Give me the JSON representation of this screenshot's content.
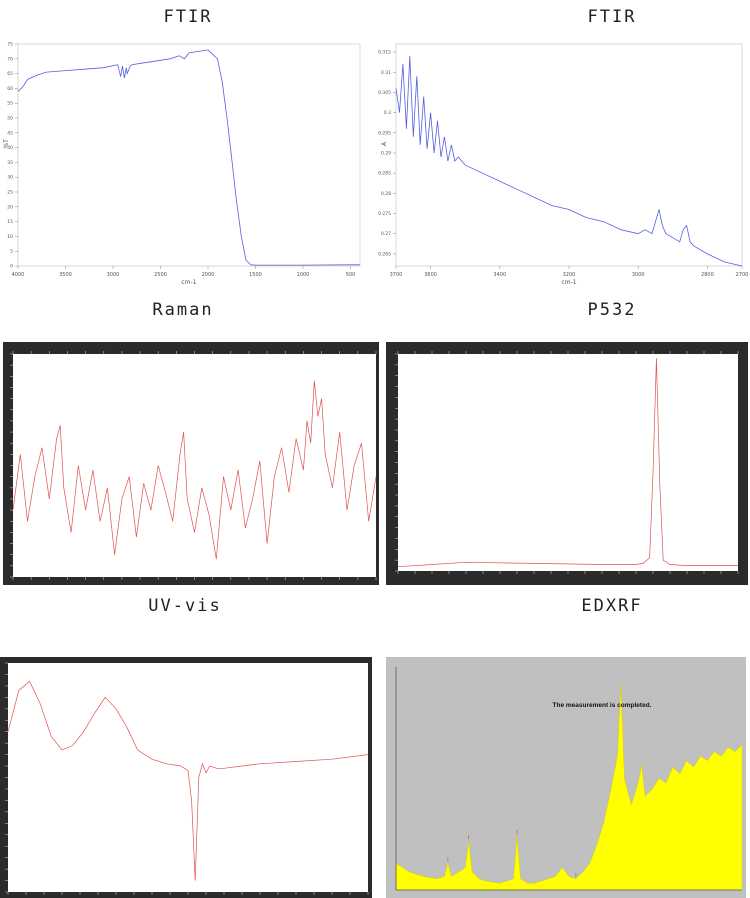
{
  "titles": {
    "ftir1": "FTIR",
    "ftir2": "FTIR",
    "raman": "Raman",
    "p532": "P532",
    "uvvis": "UV-vis",
    "edxrf": "EDXRF"
  },
  "chart_data": [
    {
      "id": "ftir1",
      "type": "line",
      "title": "FTIR",
      "xlabel": "cm-1",
      "ylabel": "%T",
      "xlim": [
        4000,
        400
      ],
      "ylim": [
        0,
        75
      ],
      "xticks": [
        4000,
        3500,
        3000,
        2500,
        2000,
        1500,
        1000,
        500
      ],
      "yticks": [
        0,
        5,
        10,
        15,
        20,
        25,
        30,
        35,
        40,
        45,
        50,
        55,
        60,
        65,
        70,
        75
      ],
      "color": "#5560e0",
      "series": [
        {
          "x": [
            4000,
            3950,
            3900,
            3800,
            3700,
            3500,
            3300,
            3100,
            2950,
            2920,
            2900,
            2880,
            2860,
            2850,
            2820,
            2800,
            2700,
            2600,
            2400,
            2300,
            2250,
            2200,
            2100,
            2000,
            1950,
            1900,
            1850,
            1800,
            1750,
            1700,
            1650,
            1600,
            1550,
            1500,
            1450,
            1400,
            1000,
            500,
            400
          ],
          "y": [
            59,
            60.5,
            63,
            64.5,
            65.5,
            66,
            66.5,
            67,
            68,
            64,
            67.5,
            63.5,
            67,
            65,
            67.5,
            68,
            68.5,
            69,
            70,
            71,
            70,
            72,
            72.5,
            73,
            71.5,
            70,
            62,
            50,
            36,
            22,
            10,
            2,
            0.4,
            0.3,
            0.3,
            0.3,
            0.3,
            0.4,
            0.4
          ]
        }
      ]
    },
    {
      "id": "ftir2",
      "type": "line",
      "title": "FTIR",
      "xlabel": "cm-1",
      "ylabel": "A",
      "xlim": [
        3700,
        2700
      ],
      "ylim": [
        0.262,
        0.317
      ],
      "xticks": [
        3700,
        3600,
        3400,
        3200,
        3000,
        2800,
        2700
      ],
      "yticks": [
        0.265,
        0.27,
        0.275,
        0.28,
        0.285,
        0.29,
        0.295,
        0.3,
        0.305,
        0.31,
        0.315
      ],
      "color": "#5560e0",
      "series": [
        {
          "x": [
            3700,
            3690,
            3680,
            3670,
            3660,
            3650,
            3640,
            3630,
            3620,
            3610,
            3600,
            3590,
            3580,
            3570,
            3560,
            3550,
            3540,
            3530,
            3520,
            3500,
            3450,
            3400,
            3350,
            3300,
            3250,
            3200,
            3150,
            3100,
            3050,
            3000,
            2980,
            2960,
            2950,
            2940,
            2930,
            2920,
            2900,
            2880,
            2870,
            2860,
            2850,
            2840,
            2800,
            2750,
            2700
          ],
          "y": [
            0.306,
            0.3,
            0.312,
            0.296,
            0.314,
            0.294,
            0.309,
            0.292,
            0.304,
            0.291,
            0.3,
            0.29,
            0.298,
            0.289,
            0.294,
            0.288,
            0.292,
            0.288,
            0.289,
            0.287,
            0.285,
            0.283,
            0.281,
            0.279,
            0.277,
            0.276,
            0.274,
            0.273,
            0.271,
            0.27,
            0.271,
            0.27,
            0.273,
            0.276,
            0.272,
            0.27,
            0.269,
            0.268,
            0.271,
            0.272,
            0.268,
            0.267,
            0.265,
            0.263,
            0.262
          ]
        }
      ]
    },
    {
      "id": "raman",
      "type": "line",
      "title": "Raman",
      "xlim": [
        0,
        100
      ],
      "ylim": [
        0,
        100
      ],
      "color": "#e05050",
      "frame": "#2b2b2b",
      "series": [
        {
          "x": [
            0,
            2,
            4,
            6,
            8,
            10,
            12,
            13,
            14,
            16,
            18,
            20,
            22,
            24,
            26,
            28,
            30,
            32,
            34,
            36,
            38,
            40,
            42,
            44,
            46,
            47,
            48,
            50,
            52,
            54,
            56,
            58,
            60,
            62,
            64,
            66,
            68,
            70,
            72,
            74,
            76,
            78,
            80,
            81,
            82,
            83,
            84,
            85,
            86,
            88,
            90,
            92,
            94,
            96,
            98,
            100
          ],
          "y": [
            30,
            55,
            25,
            45,
            58,
            35,
            62,
            68,
            40,
            20,
            50,
            30,
            48,
            25,
            40,
            10,
            35,
            45,
            18,
            42,
            30,
            50,
            38,
            25,
            55,
            65,
            35,
            20,
            40,
            28,
            8,
            45,
            30,
            48,
            22,
            35,
            52,
            15,
            45,
            58,
            38,
            62,
            48,
            70,
            60,
            88,
            72,
            80,
            55,
            40,
            65,
            30,
            50,
            60,
            25,
            45
          ]
        }
      ]
    },
    {
      "id": "p532",
      "type": "line",
      "title": "P532",
      "xlim": [
        0,
        100
      ],
      "ylim": [
        0,
        100
      ],
      "color": "#e05050",
      "frame": "#2b2b2b",
      "series": [
        {
          "x": [
            0,
            10,
            20,
            40,
            60,
            70,
            72,
            74,
            75,
            76,
            77,
            78,
            80,
            85,
            90,
            100
          ],
          "y": [
            2,
            3,
            4,
            3.5,
            3,
            3,
            3.5,
            6,
            45,
            98,
            40,
            5,
            3,
            2.5,
            2.5,
            2.5
          ]
        }
      ]
    },
    {
      "id": "uvvis",
      "type": "line",
      "title": "UV-vis",
      "xlim": [
        0,
        100
      ],
      "ylim": [
        0,
        100
      ],
      "color": "#e05050",
      "frame": "#2b2b2b",
      "series": [
        {
          "x": [
            0,
            3,
            6,
            9,
            12,
            15,
            18,
            21,
            24,
            27,
            30,
            33,
            36,
            40,
            44,
            48,
            50,
            51,
            52,
            53,
            54,
            55,
            56,
            58,
            60,
            65,
            70,
            80,
            90,
            100
          ],
          "y": [
            70,
            88,
            92,
            82,
            68,
            62,
            64,
            70,
            78,
            85,
            80,
            72,
            62,
            58,
            56,
            55,
            53,
            40,
            5,
            50,
            56,
            52,
            55,
            54,
            54,
            55,
            56,
            57,
            58,
            60
          ]
        }
      ]
    },
    {
      "id": "edxrf",
      "type": "area",
      "title": "EDXRF",
      "annotation": "The measurement is completed.",
      "xlim": [
        0,
        100
      ],
      "ylim": [
        0,
        100
      ],
      "color": "#ffff00",
      "background": "#c0c0c0",
      "series": [
        {
          "x": [
            0,
            4,
            8,
            12,
            14,
            15,
            16,
            18,
            20,
            21,
            22,
            24,
            26,
            30,
            34,
            35,
            36,
            38,
            40,
            42,
            44,
            46,
            48,
            50,
            52,
            54,
            56,
            58,
            60,
            62,
            64,
            65,
            66,
            68,
            70,
            71,
            72,
            74,
            76,
            78,
            80,
            82,
            84,
            86,
            88,
            90,
            92,
            94,
            96,
            98,
            100
          ],
          "y": [
            12,
            8,
            6,
            5,
            6,
            12,
            6,
            8,
            10,
            22,
            8,
            5,
            4,
            3,
            5,
            24,
            5,
            3,
            3,
            4,
            5,
            6,
            10,
            6,
            5,
            8,
            12,
            20,
            30,
            44,
            60,
            92,
            50,
            38,
            48,
            56,
            42,
            45,
            50,
            48,
            55,
            52,
            58,
            55,
            60,
            58,
            62,
            60,
            64,
            62,
            65
          ]
        }
      ]
    }
  ]
}
